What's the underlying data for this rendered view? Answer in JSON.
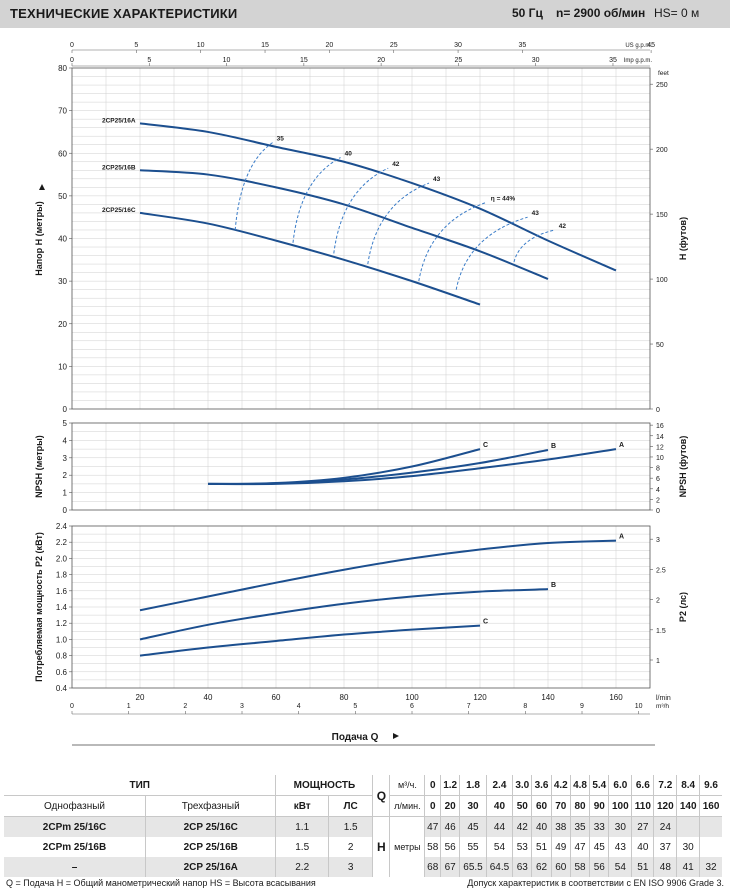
{
  "header": {
    "title": "ТЕХНИЧЕСКИЕ ХАРАКТЕРИСТИКИ",
    "freq": "50 Гц",
    "speed": "n= 2900 об/мин",
    "hs": "HS= 0 м"
  },
  "chart_data": [
    {
      "type": "line",
      "id": "head",
      "ylabel": "Напор H (метры)",
      "y2label": "H (футов)",
      "ylim": [
        0,
        80
      ],
      "yticks": [
        0,
        10,
        20,
        30,
        40,
        50,
        60,
        70,
        80
      ],
      "y2ticks": [
        "0",
        "50",
        "100",
        "150",
        "200",
        "250"
      ],
      "y2_unit_top": "feet",
      "xlim": [
        0,
        170
      ],
      "grid": true,
      "series": [
        {
          "name": "2CP25/16A",
          "x": [
            20,
            40,
            60,
            80,
            100,
            120,
            140,
            160
          ],
          "y": [
            67,
            65,
            61.5,
            58,
            53,
            47,
            39.5,
            32.5
          ]
        },
        {
          "name": "2CP25/16B",
          "x": [
            20,
            40,
            60,
            80,
            100,
            120,
            140
          ],
          "y": [
            56,
            55,
            52,
            48,
            42.5,
            37,
            30.5
          ]
        },
        {
          "name": "2CP25/16C",
          "x": [
            20,
            40,
            60,
            80,
            100,
            120
          ],
          "y": [
            46,
            43.5,
            39.5,
            35,
            30,
            24.5
          ]
        }
      ],
      "efficiency_labels": [
        "35",
        "40",
        "42",
        "43",
        "η = 44%",
        "43",
        "42"
      ],
      "efficiency_arcs": [
        {
          "x": [
            48,
            59
          ],
          "y": [
            42,
            62.5
          ]
        },
        {
          "x": [
            65,
            79
          ],
          "y": [
            39,
            59
          ]
        },
        {
          "x": [
            77,
            93
          ],
          "y": [
            36.5,
            56.5
          ]
        },
        {
          "x": [
            87,
            105
          ],
          "y": [
            34,
            53
          ]
        },
        {
          "x": [
            102,
            122
          ],
          "y": [
            30,
            48.5
          ]
        },
        {
          "x": [
            113,
            134
          ],
          "y": [
            28,
            45
          ]
        },
        {
          "x": [
            130,
            142
          ],
          "y": [
            34.5,
            42
          ]
        }
      ]
    },
    {
      "type": "line",
      "id": "npsh",
      "ylabel": "NPSH (метры)",
      "y2label": "NPSH (футов)",
      "ylim": [
        0,
        5
      ],
      "yticks": [
        0,
        1,
        2,
        3,
        4,
        5
      ],
      "y2ticks": [
        "0",
        "2",
        "4",
        "6",
        "8",
        "10",
        "12",
        "14",
        "16"
      ],
      "series": [
        {
          "name": "A",
          "x": [
            40,
            60,
            80,
            100,
            120,
            140,
            160
          ],
          "y": [
            1.5,
            1.5,
            1.65,
            1.95,
            2.4,
            2.9,
            3.5
          ]
        },
        {
          "name": "B",
          "x": [
            40,
            60,
            80,
            100,
            120,
            140
          ],
          "y": [
            1.5,
            1.52,
            1.75,
            2.15,
            2.7,
            3.45
          ]
        },
        {
          "name": "C",
          "x": [
            40,
            60,
            80,
            100,
            120
          ],
          "y": [
            1.5,
            1.55,
            1.85,
            2.5,
            3.5
          ]
        }
      ]
    },
    {
      "type": "line",
      "id": "power",
      "ylabel": "Потребляемая мощность P2 (кВт)",
      "y2label": "P2 (лс)",
      "ylim": [
        0.4,
        2.4
      ],
      "yticks": [
        0.4,
        0.6,
        0.8,
        1.0,
        1.2,
        1.4,
        1.6,
        1.8,
        2.0,
        2.2,
        2.4
      ],
      "y2ticks": [
        "1",
        "1.5",
        "2",
        "2.5",
        "3"
      ],
      "series": [
        {
          "name": "A",
          "x": [
            20,
            40,
            60,
            80,
            100,
            120,
            140,
            160
          ],
          "y": [
            1.36,
            1.53,
            1.7,
            1.86,
            2.0,
            2.11,
            2.19,
            2.22
          ]
        },
        {
          "name": "B",
          "x": [
            20,
            40,
            60,
            80,
            100,
            120,
            140
          ],
          "y": [
            1.0,
            1.18,
            1.32,
            1.44,
            1.53,
            1.59,
            1.62
          ]
        },
        {
          "name": "C",
          "x": [
            20,
            40,
            60,
            80,
            100,
            120
          ],
          "y": [
            0.8,
            0.9,
            0.98,
            1.06,
            1.12,
            1.17
          ]
        }
      ]
    }
  ],
  "axes": {
    "lmin_ticks": [
      "20",
      "40",
      "60",
      "80",
      "100",
      "120",
      "140",
      "160"
    ],
    "lmin_unit": "l/min",
    "m3h_ticks": [
      "0",
      "1",
      "2",
      "3",
      "4",
      "5",
      "6",
      "7",
      "8",
      "9",
      "10"
    ],
    "m3h_unit": "m³/h",
    "us_gpm_ticks": [
      "0",
      "5",
      "10",
      "15",
      "20",
      "25",
      "30",
      "35",
      "45"
    ],
    "us_gpm_unit": "US g.p.m.",
    "imp_gpm_ticks": [
      "0",
      "5",
      "10",
      "15",
      "20",
      "25",
      "30",
      "35"
    ],
    "imp_gpm_unit": "Imp g.p.m.",
    "bottom_lmin_zero": "0",
    "flow_label": "Подача Q"
  },
  "table": {
    "tip": "ТИП",
    "moshch": "МОЩНОСТЬ",
    "q_letter": "Q",
    "h_letter": "H",
    "unit_m3h": "м³/ч.",
    "unit_lmin": "л/мин.",
    "unit_h": "метры",
    "single": "Однофазный",
    "three": "Трехфазный",
    "kw": "кВт",
    "hp": "ЛС",
    "q_m3h": [
      "0",
      "1.2",
      "1.8",
      "2.4",
      "3.0",
      "3.6",
      "4.2",
      "4.8",
      "5.4",
      "6.0",
      "6.6",
      "7.2",
      "8.4",
      "9.6"
    ],
    "q_lmin": [
      "0",
      "20",
      "30",
      "40",
      "50",
      "60",
      "70",
      "80",
      "90",
      "100",
      "110",
      "120",
      "140",
      "160"
    ],
    "rows": [
      {
        "single": "2CPm 25/16C",
        "three": "2CP 25/16C",
        "kw": "1.1",
        "hp": "1.5",
        "h": [
          "47",
          "46",
          "45",
          "44",
          "42",
          "40",
          "38",
          "35",
          "33",
          "30",
          "27",
          "24",
          "",
          ""
        ]
      },
      {
        "single": "2CPm 25/16B",
        "three": "2CP 25/16B",
        "kw": "1.5",
        "hp": "2",
        "h": [
          "58",
          "56",
          "55",
          "54",
          "53",
          "51",
          "49",
          "47",
          "45",
          "43",
          "40",
          "37",
          "30",
          ""
        ]
      },
      {
        "single": "–",
        "three": "2CP 25/16A",
        "kw": "2.2",
        "hp": "3",
        "h": [
          "68",
          "67",
          "65.5",
          "64.5",
          "63",
          "62",
          "60",
          "58",
          "56",
          "54",
          "51",
          "48",
          "41",
          "32"
        ]
      }
    ]
  },
  "footer": {
    "left": "Q = Подача   H = Общий манометрический напор   HS = Высота всасывания",
    "right": "Допуск характеристик в соответствии с EN ISO 9906 Grade 3."
  },
  "colors": {
    "curve": "#1c4f8f",
    "grid": "#cfcfcf",
    "header_bg": "#d3d3d3"
  }
}
